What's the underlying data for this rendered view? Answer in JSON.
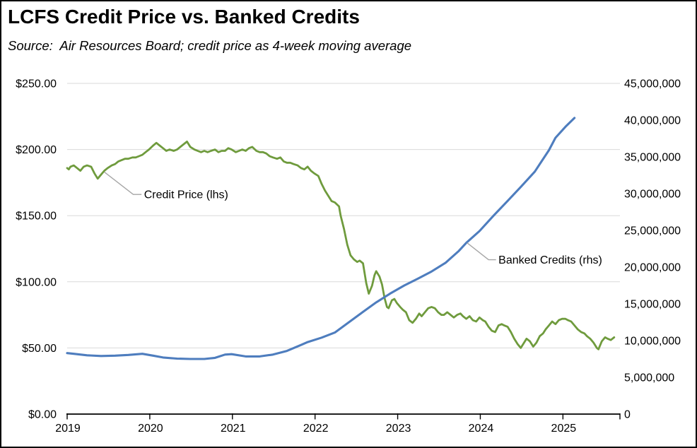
{
  "title": "LCFS Credit Price vs. Banked Credits",
  "subtitle": "Source:  Air Resources Board; credit price as 4-week moving average",
  "colors": {
    "credit_price_line": "#6F9B3D",
    "banked_credits_line": "#4E7DBE",
    "gridline": "#D9D9D9",
    "axis": "#000000",
    "leader_line": "#A6A6A6",
    "background": "#FFFFFF",
    "text": "#000000"
  },
  "chart_data": {
    "type": "line",
    "grid": true,
    "legend": "none",
    "x_axis": {
      "min": 2019,
      "max": 2025.69,
      "tick_values": [
        2019,
        2020,
        2021,
        2022,
        2023,
        2024,
        2025
      ],
      "tick_labels": [
        "2019",
        "2020",
        "2021",
        "2022",
        "2023",
        "2024",
        "2025"
      ]
    },
    "y_left": {
      "min": 0,
      "max": 250,
      "tick_values": [
        0,
        50,
        100,
        150,
        200,
        250
      ],
      "tick_labels": [
        "$0.00",
        "$50.00",
        "$100.00",
        "$150.00",
        "$200.00",
        "$250.00"
      ]
    },
    "y_right": {
      "min": 0,
      "max": 45000000,
      "tick_values": [
        0,
        5000000,
        10000000,
        15000000,
        20000000,
        25000000,
        30000000,
        35000000,
        40000000,
        45000000
      ],
      "tick_labels": [
        "0",
        "5,000,000",
        "10,000,000",
        "15,000,000",
        "20,000,000",
        "25,000,000",
        "30,000,000",
        "35,000,000",
        "40,000,000",
        "45,000,000"
      ]
    },
    "series": [
      {
        "name": "Credit Price (lhs)",
        "axis": "left",
        "color": "#6F9B3D",
        "width": 2.8,
        "points": [
          [
            2019.0,
            186
          ],
          [
            2019.02,
            185
          ],
          [
            2019.04,
            187
          ],
          [
            2019.08,
            188
          ],
          [
            2019.12,
            186
          ],
          [
            2019.16,
            184
          ],
          [
            2019.2,
            187
          ],
          [
            2019.24,
            188
          ],
          [
            2019.29,
            187
          ],
          [
            2019.33,
            182
          ],
          [
            2019.37,
            178
          ],
          [
            2019.41,
            181
          ],
          [
            2019.45,
            184
          ],
          [
            2019.49,
            186
          ],
          [
            2019.54,
            188
          ],
          [
            2019.58,
            189
          ],
          [
            2019.62,
            191
          ],
          [
            2019.66,
            192
          ],
          [
            2019.7,
            193
          ],
          [
            2019.74,
            193
          ],
          [
            2019.79,
            194
          ],
          [
            2019.83,
            194
          ],
          [
            2019.87,
            195
          ],
          [
            2019.91,
            196
          ],
          [
            2019.95,
            198
          ],
          [
            2019.99,
            200
          ],
          [
            2020.04,
            203
          ],
          [
            2020.08,
            205
          ],
          [
            2020.12,
            203
          ],
          [
            2020.16,
            201
          ],
          [
            2020.2,
            199
          ],
          [
            2020.24,
            200
          ],
          [
            2020.29,
            199
          ],
          [
            2020.33,
            200
          ],
          [
            2020.37,
            202
          ],
          [
            2020.41,
            204
          ],
          [
            2020.45,
            206
          ],
          [
            2020.49,
            202
          ],
          [
            2020.54,
            200
          ],
          [
            2020.58,
            199
          ],
          [
            2020.62,
            198
          ],
          [
            2020.66,
            199
          ],
          [
            2020.7,
            198
          ],
          [
            2020.74,
            199
          ],
          [
            2020.79,
            200
          ],
          [
            2020.83,
            198
          ],
          [
            2020.87,
            199
          ],
          [
            2020.91,
            199
          ],
          [
            2020.95,
            201
          ],
          [
            2020.99,
            200
          ],
          [
            2021.04,
            198
          ],
          [
            2021.08,
            199
          ],
          [
            2021.12,
            200
          ],
          [
            2021.16,
            199
          ],
          [
            2021.2,
            201
          ],
          [
            2021.24,
            202
          ],
          [
            2021.29,
            199
          ],
          [
            2021.33,
            198
          ],
          [
            2021.37,
            198
          ],
          [
            2021.41,
            197
          ],
          [
            2021.45,
            195
          ],
          [
            2021.49,
            194
          ],
          [
            2021.54,
            193
          ],
          [
            2021.58,
            194
          ],
          [
            2021.62,
            191
          ],
          [
            2021.66,
            190
          ],
          [
            2021.7,
            190
          ],
          [
            2021.74,
            189
          ],
          [
            2021.79,
            188
          ],
          [
            2021.83,
            186
          ],
          [
            2021.87,
            185
          ],
          [
            2021.91,
            187
          ],
          [
            2021.95,
            184
          ],
          [
            2021.99,
            182
          ],
          [
            2022.04,
            180
          ],
          [
            2022.08,
            174
          ],
          [
            2022.12,
            169
          ],
          [
            2022.16,
            165
          ],
          [
            2022.2,
            161
          ],
          [
            2022.24,
            160
          ],
          [
            2022.29,
            157
          ],
          [
            2022.31,
            150
          ],
          [
            2022.35,
            140
          ],
          [
            2022.39,
            128
          ],
          [
            2022.43,
            120
          ],
          [
            2022.47,
            117
          ],
          [
            2022.51,
            115
          ],
          [
            2022.54,
            116
          ],
          [
            2022.58,
            114
          ],
          [
            2022.62,
            99
          ],
          [
            2022.65,
            91
          ],
          [
            2022.69,
            97
          ],
          [
            2022.72,
            105
          ],
          [
            2022.74,
            108
          ],
          [
            2022.78,
            104
          ],
          [
            2022.81,
            98
          ],
          [
            2022.84,
            88
          ],
          [
            2022.87,
            81
          ],
          [
            2022.89,
            80
          ],
          [
            2022.93,
            86
          ],
          [
            2022.96,
            87
          ],
          [
            2022.99,
            84
          ],
          [
            2023.03,
            81
          ],
          [
            2023.06,
            79
          ],
          [
            2023.1,
            77
          ],
          [
            2023.14,
            71
          ],
          [
            2023.18,
            69
          ],
          [
            2023.22,
            72
          ],
          [
            2023.26,
            76
          ],
          [
            2023.29,
            74
          ],
          [
            2023.33,
            77
          ],
          [
            2023.37,
            80
          ],
          [
            2023.41,
            81
          ],
          [
            2023.45,
            80
          ],
          [
            2023.49,
            77
          ],
          [
            2023.53,
            75
          ],
          [
            2023.56,
            75
          ],
          [
            2023.6,
            77
          ],
          [
            2023.64,
            75
          ],
          [
            2023.68,
            73
          ],
          [
            2023.72,
            75
          ],
          [
            2023.76,
            76
          ],
          [
            2023.79,
            74
          ],
          [
            2023.83,
            72
          ],
          [
            2023.87,
            74
          ],
          [
            2023.91,
            71
          ],
          [
            2023.95,
            70
          ],
          [
            2023.99,
            73
          ],
          [
            2024.03,
            71
          ],
          [
            2024.06,
            70
          ],
          [
            2024.1,
            66
          ],
          [
            2024.14,
            63
          ],
          [
            2024.18,
            62
          ],
          [
            2024.22,
            67
          ],
          [
            2024.26,
            68
          ],
          [
            2024.29,
            67
          ],
          [
            2024.33,
            66
          ],
          [
            2024.37,
            62
          ],
          [
            2024.41,
            57
          ],
          [
            2024.45,
            53
          ],
          [
            2024.49,
            50
          ],
          [
            2024.53,
            54
          ],
          [
            2024.56,
            57
          ],
          [
            2024.6,
            55
          ],
          [
            2024.64,
            51
          ],
          [
            2024.68,
            54
          ],
          [
            2024.72,
            59
          ],
          [
            2024.76,
            61
          ],
          [
            2024.79,
            64
          ],
          [
            2024.83,
            67
          ],
          [
            2024.87,
            70
          ],
          [
            2024.91,
            68
          ],
          [
            2024.95,
            71
          ],
          [
            2024.99,
            72
          ],
          [
            2025.03,
            72
          ],
          [
            2025.06,
            71
          ],
          [
            2025.1,
            70
          ],
          [
            2025.14,
            67
          ],
          [
            2025.18,
            64
          ],
          [
            2025.22,
            62
          ],
          [
            2025.26,
            61
          ],
          [
            2025.29,
            59
          ],
          [
            2025.33,
            57
          ],
          [
            2025.37,
            54
          ],
          [
            2025.41,
            50
          ],
          [
            2025.43,
            49
          ],
          [
            2025.47,
            55
          ],
          [
            2025.51,
            58
          ],
          [
            2025.54,
            57
          ],
          [
            2025.58,
            56
          ],
          [
            2025.62,
            58
          ]
        ]
      },
      {
        "name": "Banked Credits (rhs)",
        "axis": "right",
        "color": "#4E7DBE",
        "width": 3.1,
        "points": [
          [
            2019.0,
            8300000
          ],
          [
            2019.08,
            8200000
          ],
          [
            2019.24,
            8000000
          ],
          [
            2019.41,
            7900000
          ],
          [
            2019.58,
            7950000
          ],
          [
            2019.74,
            8050000
          ],
          [
            2019.91,
            8200000
          ],
          [
            2020.04,
            7950000
          ],
          [
            2020.16,
            7700000
          ],
          [
            2020.33,
            7550000
          ],
          [
            2020.49,
            7500000
          ],
          [
            2020.66,
            7500000
          ],
          [
            2020.79,
            7650000
          ],
          [
            2020.91,
            8100000
          ],
          [
            2020.99,
            8150000
          ],
          [
            2021.16,
            7850000
          ],
          [
            2021.33,
            7850000
          ],
          [
            2021.49,
            8100000
          ],
          [
            2021.66,
            8600000
          ],
          [
            2021.83,
            9400000
          ],
          [
            2021.91,
            9800000
          ],
          [
            2022.08,
            10400000
          ],
          [
            2022.24,
            11100000
          ],
          [
            2022.41,
            12500000
          ],
          [
            2022.58,
            13900000
          ],
          [
            2022.74,
            15200000
          ],
          [
            2022.91,
            16400000
          ],
          [
            2023.08,
            17500000
          ],
          [
            2023.24,
            18400000
          ],
          [
            2023.41,
            19400000
          ],
          [
            2023.58,
            20600000
          ],
          [
            2023.74,
            22200000
          ],
          [
            2023.83,
            23300000
          ],
          [
            2023.99,
            24900000
          ],
          [
            2024.16,
            27000000
          ],
          [
            2024.33,
            29000000
          ],
          [
            2024.49,
            30900000
          ],
          [
            2024.66,
            33000000
          ],
          [
            2024.83,
            35900000
          ],
          [
            2024.91,
            37600000
          ],
          [
            2025.03,
            39100000
          ],
          [
            2025.14,
            40300000
          ]
        ]
      }
    ],
    "annotations": [
      {
        "text": "Credit Price (lhs)",
        "axis": "left",
        "leader": [
          [
            2019.45,
            183
          ],
          [
            2019.8,
            166
          ],
          [
            2019.9,
            166
          ]
        ],
        "label_pos": [
          2019.93,
          166
        ]
      },
      {
        "text": "Banked Credits (rhs)",
        "axis": "right",
        "leader": [
          [
            2023.84,
            23300000
          ],
          [
            2024.1,
            21000000
          ],
          [
            2024.19,
            21000000
          ]
        ],
        "label_pos": [
          2024.22,
          21000000
        ]
      }
    ]
  }
}
